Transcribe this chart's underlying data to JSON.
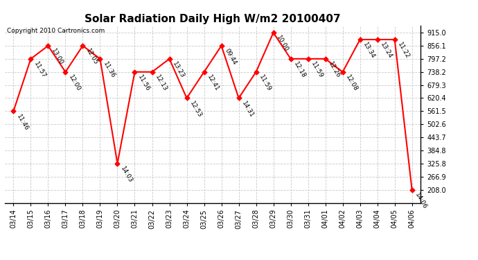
{
  "title": "Solar Radiation Daily High W/m2 20100407",
  "copyright": "Copyright 2010 Cartronics.com",
  "dates": [
    "03/14",
    "03/15",
    "03/16",
    "03/17",
    "03/18",
    "03/19",
    "03/20",
    "03/21",
    "03/22",
    "03/23",
    "03/24",
    "03/25",
    "03/26",
    "03/27",
    "03/28",
    "03/29",
    "03/30",
    "03/31",
    "04/01",
    "04/02",
    "04/03",
    "04/04",
    "04/05",
    "04/06"
  ],
  "values": [
    561.5,
    797.2,
    856.1,
    738.2,
    856.1,
    797.2,
    325.8,
    738.2,
    738.2,
    797.2,
    620.4,
    738.2,
    856.1,
    620.4,
    738.2,
    915.0,
    797.2,
    797.2,
    797.2,
    738.2,
    884.0,
    884.0,
    884.0,
    208.0
  ],
  "labels": [
    "11:46",
    "11:57",
    "13:00",
    "12:00",
    "12:05",
    "11:36",
    "14:03",
    "11:56",
    "12:13",
    "13:23",
    "12:53",
    "12:41",
    "09:44",
    "14:31",
    "11:59",
    "10:00",
    "12:18",
    "11:59",
    "12:26",
    "12:08",
    "13:34",
    "13:24",
    "11:22",
    "14:06"
  ],
  "yticks": [
    208.0,
    266.9,
    325.8,
    384.8,
    443.7,
    502.6,
    561.5,
    620.4,
    679.3,
    738.2,
    797.2,
    856.1,
    915.0
  ],
  "ymin": 149.0,
  "ymax": 945.0,
  "line_color": "red",
  "marker_color": "red",
  "background_color": "white",
  "grid_color": "#c8c8c8",
  "title_fontsize": 11,
  "label_fontsize": 6.5,
  "tick_fontsize": 7,
  "copyright_fontsize": 6.5
}
